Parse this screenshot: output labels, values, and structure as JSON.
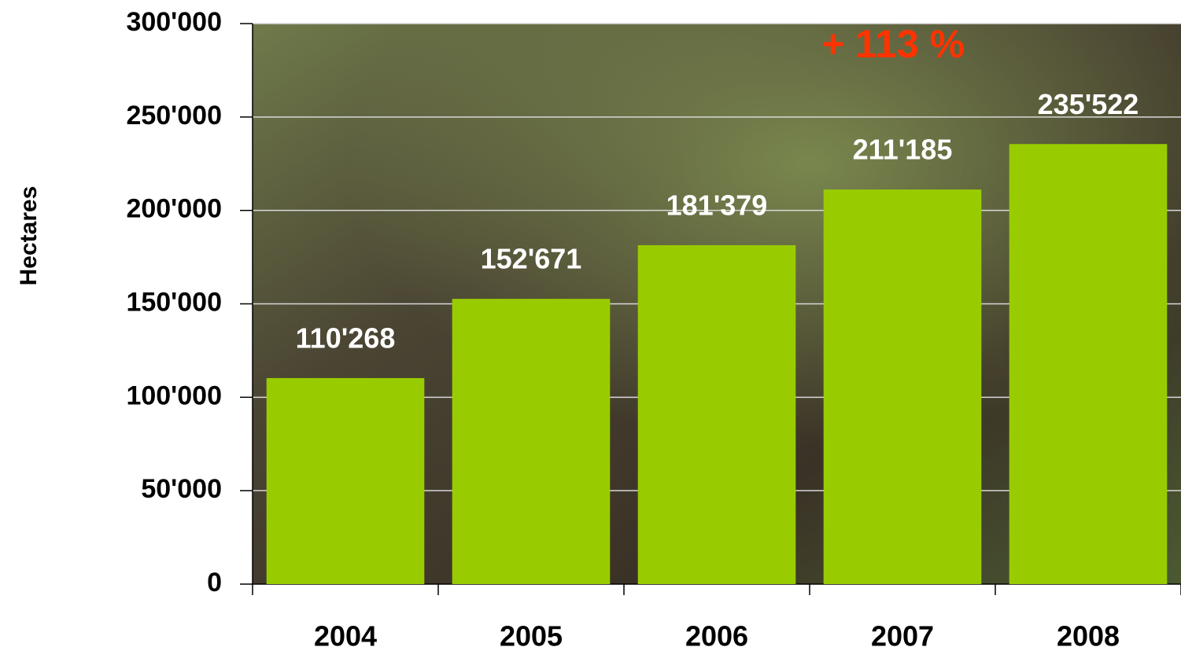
{
  "chart_data": {
    "type": "bar",
    "y_label": "Hectares",
    "annotation": "+ 113 %",
    "categories": [
      "2004",
      "2005",
      "2006",
      "2007",
      "2008"
    ],
    "values": [
      110268,
      152671,
      181379,
      211185,
      235522
    ],
    "value_labels": [
      "110'268",
      "152'671",
      "181'379",
      "211'185",
      "235'522"
    ],
    "color": "#99cc00",
    "ylim": [
      0,
      300000
    ],
    "yticks": [
      0,
      {
        "value": 50000,
        "label": "50'000"
      },
      {
        "value": 100000,
        "label": "100'000"
      },
      {
        "value": 150000,
        "label": "150'000"
      },
      {
        "value": 200000,
        "label": "200'000"
      },
      {
        "value": 250000,
        "label": "250'000"
      },
      {
        "value": 300000,
        "label": "300'000"
      }
    ],
    "grid": true
  }
}
